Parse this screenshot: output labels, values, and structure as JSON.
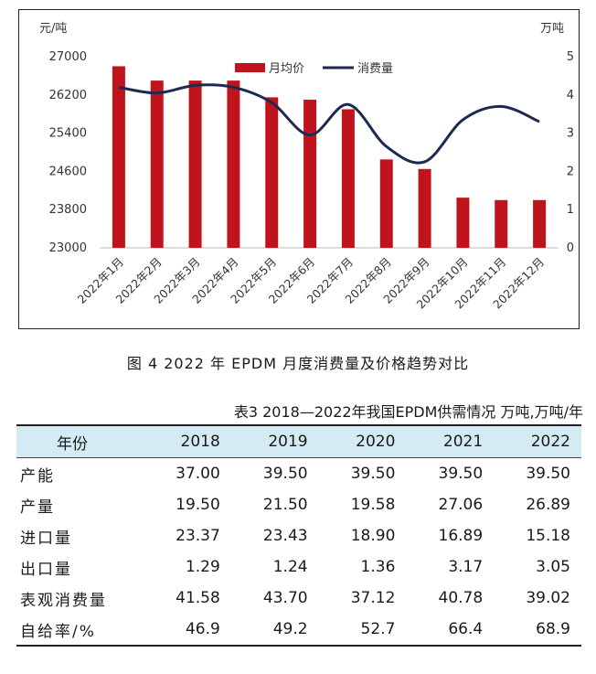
{
  "chart_data": {
    "type": "bar+line",
    "categories": [
      "2022年1月",
      "2022年2月",
      "2022年3月",
      "2022年4月",
      "2022年5月",
      "2022年6月",
      "2022年7月",
      "2022年8月",
      "2022年9月",
      "2022年10月",
      "2022年11月",
      "2022年12月"
    ],
    "series": [
      {
        "name": "月均价",
        "type": "bar",
        "axis": "left",
        "color": "#c0141c",
        "values": [
          26800,
          26500,
          26500,
          26500,
          26150,
          26100,
          25900,
          24850,
          24650,
          24050,
          24000,
          24000
        ]
      },
      {
        "name": "消费量",
        "type": "line",
        "axis": "right",
        "color": "#1c2a50",
        "values": [
          4.2,
          4.05,
          4.25,
          4.2,
          3.8,
          2.95,
          3.75,
          2.65,
          2.25,
          3.35,
          3.7,
          3.3
        ]
      }
    ],
    "left_axis": {
      "unit": "元/吨",
      "ticks": [
        23000,
        23800,
        24600,
        25400,
        26200,
        27000
      ],
      "ylim": [
        23000,
        27000
      ]
    },
    "right_axis": {
      "unit": "万吨",
      "ticks": [
        0,
        1,
        2,
        3,
        4,
        5
      ],
      "ylim": [
        0,
        5
      ]
    },
    "legend_position": "top-center",
    "grid": false
  },
  "figure_caption": "图 4  2022 年 EPDM 月度消费量及价格趋势对比",
  "table": {
    "caption": "表3  2018—2022年我国EPDM供需情况   万吨,万吨/年",
    "header_label": "年份",
    "years": [
      "2018",
      "2019",
      "2020",
      "2021",
      "2022"
    ],
    "rows": [
      {
        "label": "产能",
        "values": [
          "37.00",
          "39.50",
          "39.50",
          "39.50",
          "39.50"
        ]
      },
      {
        "label": "产量",
        "values": [
          "19.50",
          "21.50",
          "19.58",
          "27.06",
          "26.89"
        ]
      },
      {
        "label": "进口量",
        "values": [
          "23.37",
          "23.43",
          "18.90",
          "16.89",
          "15.18"
        ]
      },
      {
        "label": "出口量",
        "values": [
          "1.29",
          "1.24",
          "1.36",
          "3.17",
          "3.05"
        ]
      },
      {
        "label": "表观消费量",
        "values": [
          "41.58",
          "43.70",
          "37.12",
          "40.78",
          "39.02"
        ]
      },
      {
        "label": "自给率/%",
        "values": [
          "46.9",
          "49.2",
          "52.7",
          "66.4",
          "68.9"
        ]
      }
    ]
  }
}
